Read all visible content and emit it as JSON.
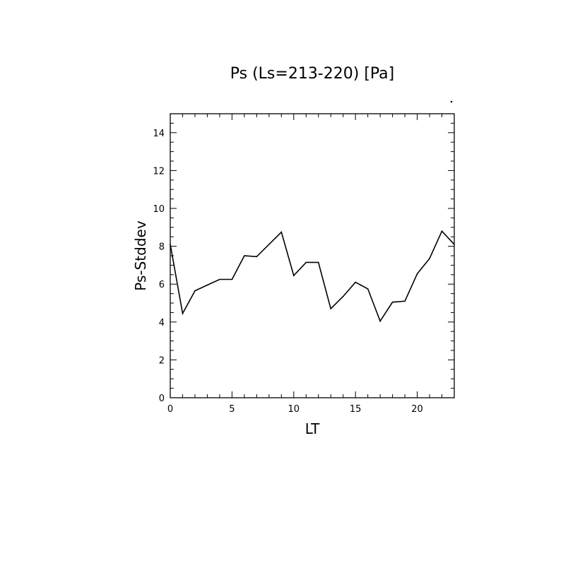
{
  "chart_data": {
    "type": "line",
    "title": "Ps (Ls=213-220) [Pa]",
    "xlabel": "LT",
    "ylabel": "Ps-Stddev",
    "xlim": [
      0,
      23
    ],
    "ylim": [
      0,
      15
    ],
    "x_ticks": [
      0,
      5,
      10,
      15,
      20
    ],
    "y_ticks": [
      0,
      2,
      4,
      6,
      8,
      10,
      12,
      14
    ],
    "grid": false,
    "legend": "none",
    "series": [
      {
        "color": "#000000",
        "x": [
          0,
          1,
          2,
          3,
          4,
          5,
          6,
          7,
          8,
          9,
          10,
          11,
          12,
          13,
          14,
          15,
          16,
          17,
          18,
          19,
          20,
          21,
          22,
          23
        ],
        "y": [
          8.1,
          4.45,
          5.65,
          5.95,
          6.25,
          6.25,
          7.5,
          7.45,
          8.1,
          8.75,
          6.45,
          7.15,
          7.15,
          4.7,
          5.35,
          6.1,
          5.75,
          4.05,
          5.05,
          5.1,
          6.55,
          7.35,
          8.8,
          8.1
        ]
      }
    ]
  }
}
